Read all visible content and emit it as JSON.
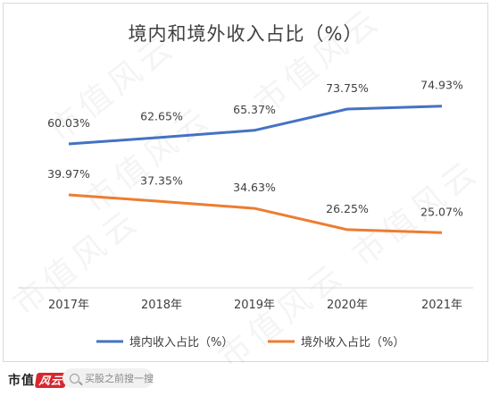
{
  "chart_data": {
    "type": "line",
    "title": "境内和境外收入占比（%）",
    "categories": [
      "2017年",
      "2018年",
      "2019年",
      "2020年",
      "2021年"
    ],
    "series": [
      {
        "name": "境内收入占比（%）",
        "color": "#4472c4",
        "values": [
          60.03,
          62.65,
          65.37,
          73.75,
          74.93
        ],
        "labels": [
          "60.03%",
          "62.65%",
          "65.37%",
          "73.75%",
          "74.93%"
        ]
      },
      {
        "name": "境外收入占比（%）",
        "color": "#ed7d31",
        "values": [
          39.97,
          37.35,
          34.63,
          26.25,
          25.07
        ],
        "labels": [
          "39.97%",
          "37.35%",
          "34.63%",
          "26.25%",
          "25.07%"
        ]
      }
    ],
    "legend_position": "bottom",
    "grid": false
  },
  "watermark": "市值风云",
  "footer": {
    "logo_text": "市值",
    "logo_badge": "风云",
    "search_placeholder": "买股之前搜一搜",
    "search_icon": "search-icon"
  }
}
